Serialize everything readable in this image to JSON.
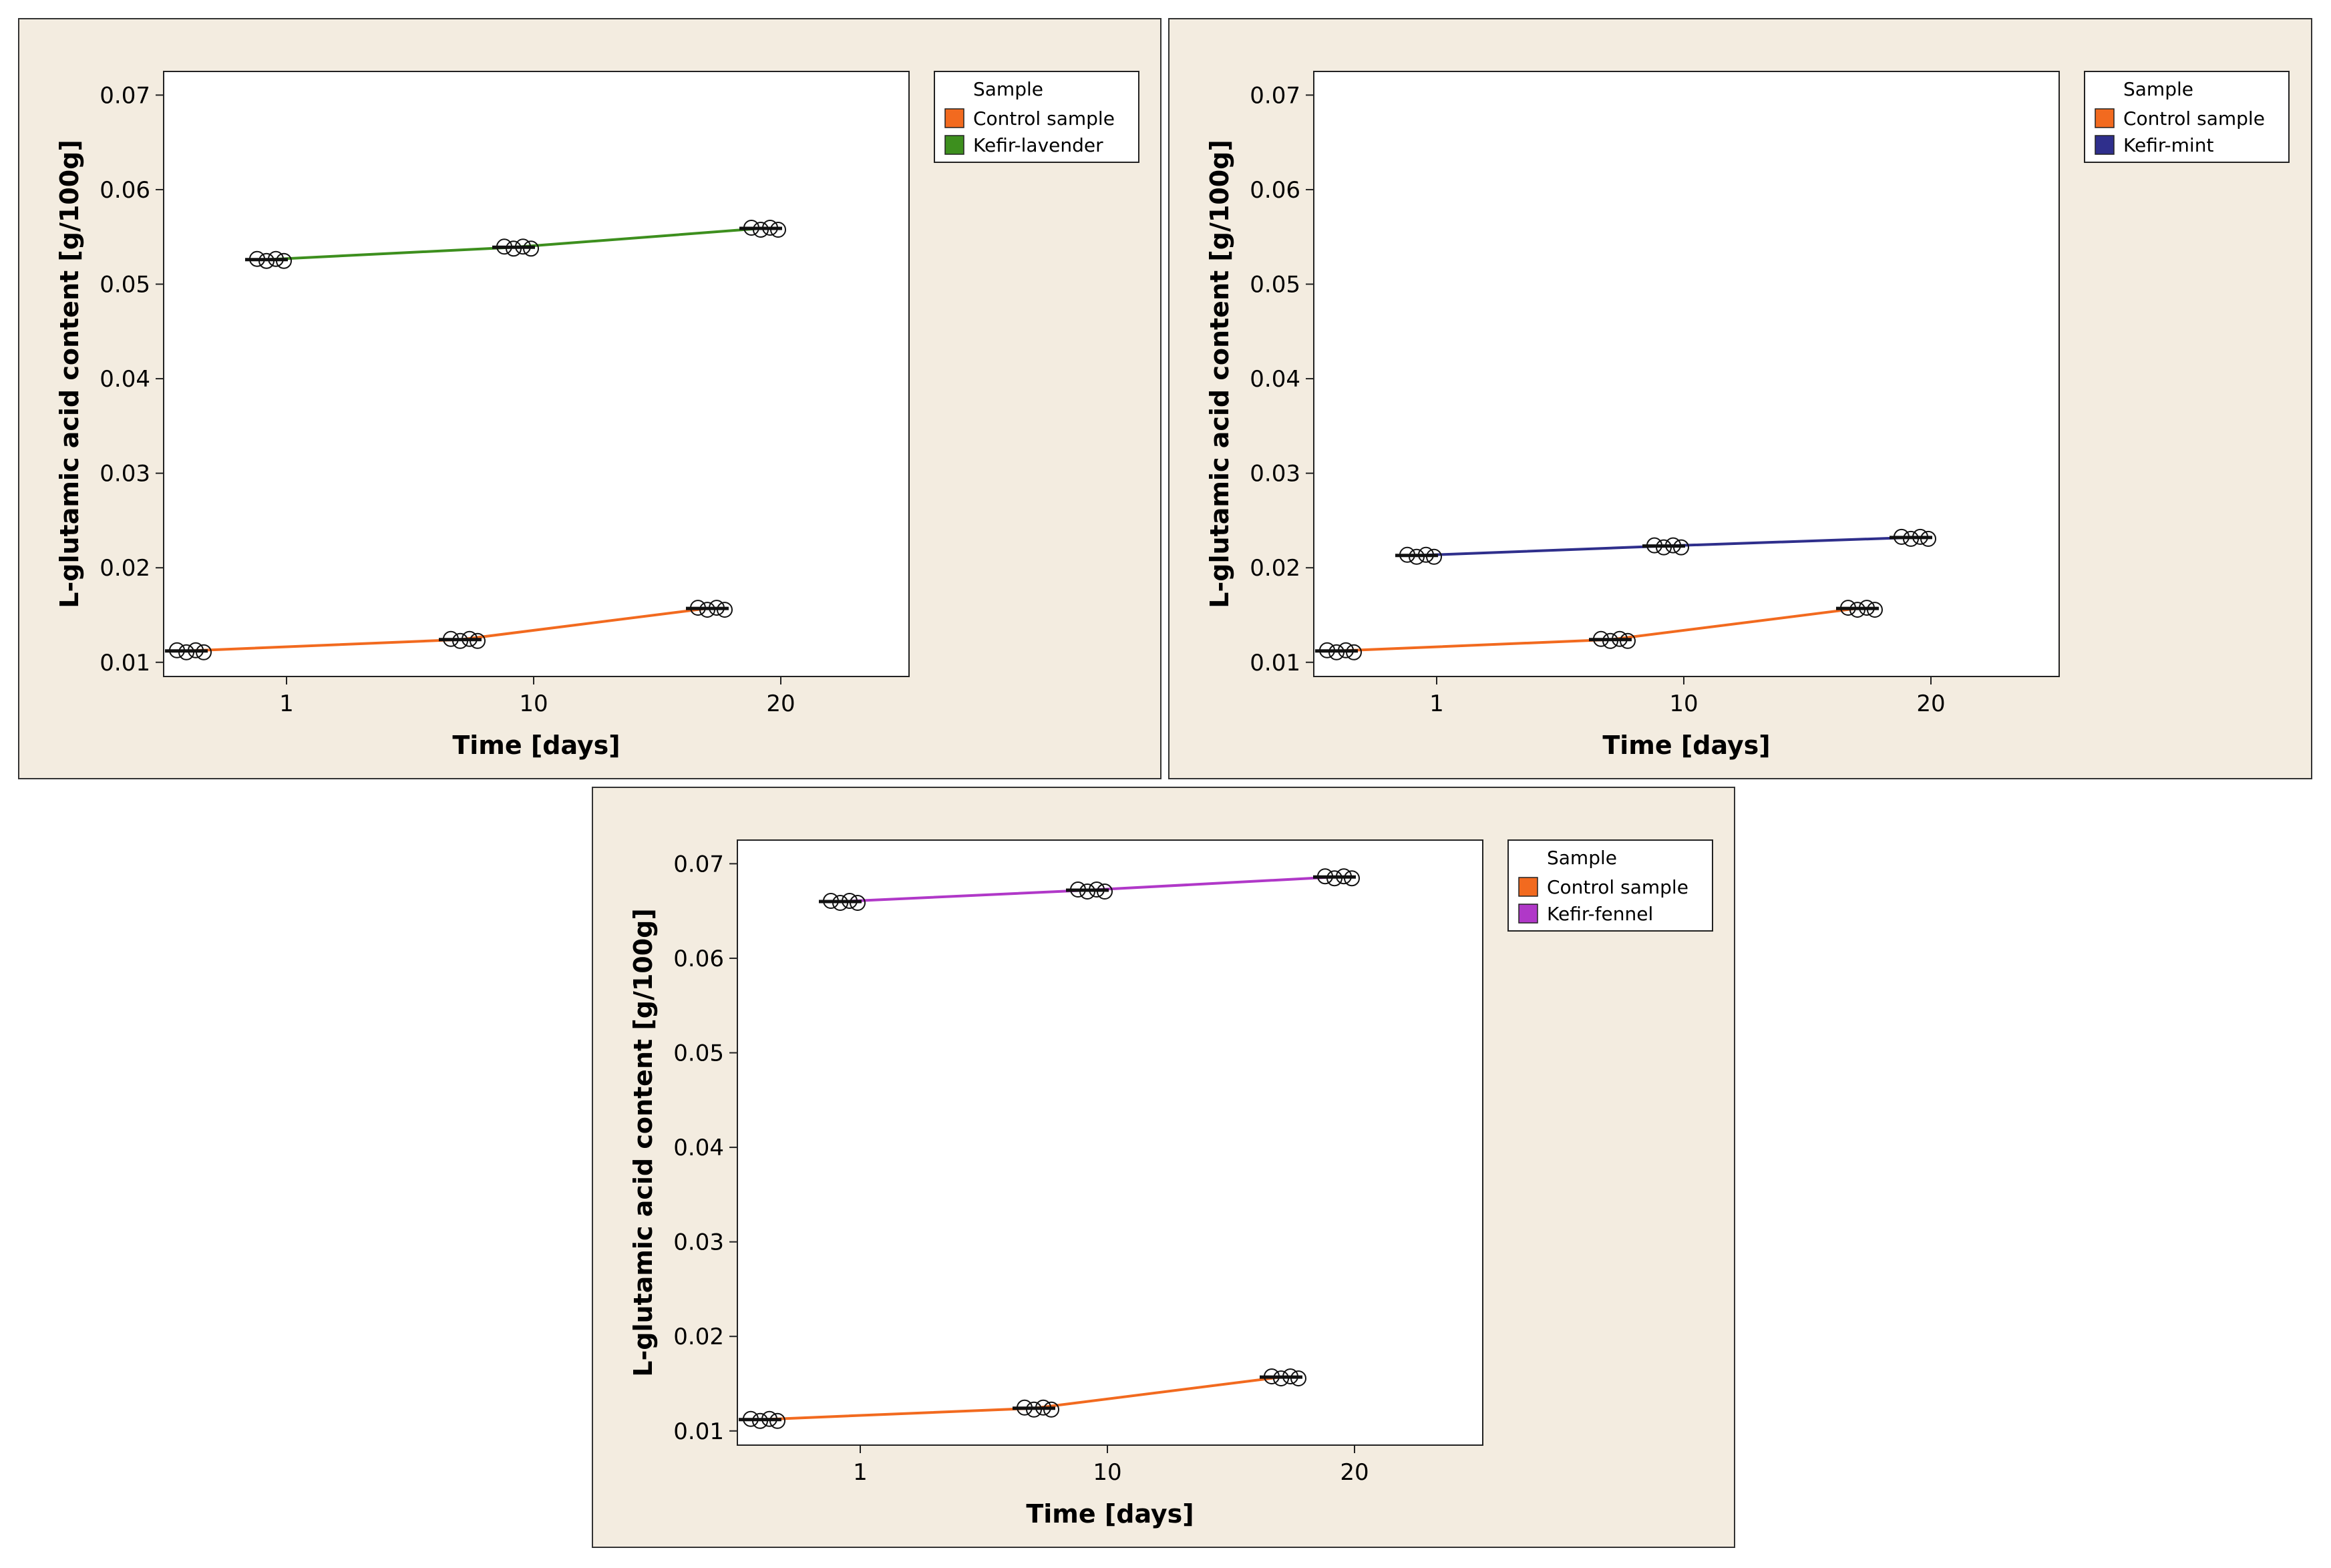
{
  "colors": {
    "control": "#f26a1f",
    "lavender": "#3d8f1e",
    "mint": "#2f2f8c",
    "fennel": "#b038c8",
    "panel_bg": "#f3ece0"
  },
  "chart_data": [
    {
      "type": "line",
      "title": "",
      "xlabel": "Time [days]",
      "ylabel": "L-glutamic acid content [g/100g]",
      "x_ticks": [
        "1",
        "10",
        "20"
      ],
      "y_ticks": [
        "0.07",
        "0.06",
        "0.05",
        "0.04",
        "0.03",
        "0.02",
        "0.01"
      ],
      "ylim": [
        0.0085,
        0.0725
      ],
      "legend_title": "Sample",
      "categories": [
        "1",
        "10",
        "20"
      ],
      "series": [
        {
          "name": "Control sample",
          "color": "#f26a1f",
          "values": [
            0.0112,
            0.0124,
            0.0157
          ],
          "x_offset": -2
        },
        {
          "name": "Kefir-lavender",
          "color": "#3d8f1e",
          "values": [
            0.0526,
            0.0539,
            0.0559
          ],
          "x_offset": 2
        }
      ]
    },
    {
      "type": "line",
      "title": "",
      "xlabel": "Time [days]",
      "ylabel": "L-glutamic acid content [g/100g]",
      "x_ticks": [
        "1",
        "10",
        "20"
      ],
      "y_ticks": [
        "0.07",
        "0.06",
        "0.05",
        "0.04",
        "0.03",
        "0.02",
        "0.01"
      ],
      "ylim": [
        0.0085,
        0.0725
      ],
      "legend_title": "Sample",
      "categories": [
        "1",
        "10",
        "20"
      ],
      "series": [
        {
          "name": "Control sample",
          "color": "#f26a1f",
          "values": [
            0.0112,
            0.0124,
            0.0157
          ],
          "x_offset": -2
        },
        {
          "name": "Kefir-mint",
          "color": "#2f2f8c",
          "values": [
            0.0213,
            0.0223,
            0.0232
          ],
          "x_offset": 2
        }
      ]
    },
    {
      "type": "line",
      "title": "",
      "xlabel": "Time [days]",
      "ylabel": "L-glutamic acid content [g/100g]",
      "x_ticks": [
        "1",
        "10",
        "20"
      ],
      "y_ticks": [
        "0.07",
        "0.06",
        "0.05",
        "0.04",
        "0.03",
        "0.02",
        "0.01"
      ],
      "ylim": [
        0.0085,
        0.0725
      ],
      "legend_title": "Sample",
      "categories": [
        "1",
        "10",
        "20"
      ],
      "series": [
        {
          "name": "Control sample",
          "color": "#f26a1f",
          "values": [
            0.0112,
            0.0124,
            0.0157
          ],
          "x_offset": -2
        },
        {
          "name": "Kefir-fennel",
          "color": "#b038c8",
          "values": [
            0.066,
            0.0672,
            0.0686
          ],
          "x_offset": 2
        }
      ]
    }
  ]
}
